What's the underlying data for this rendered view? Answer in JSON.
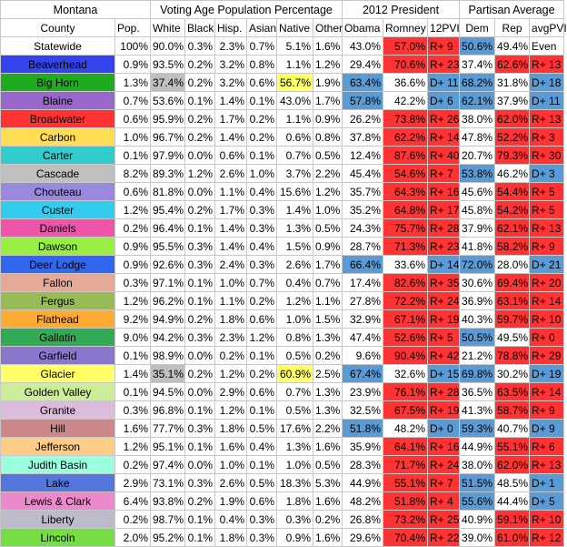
{
  "title_row": {
    "state": "Montana",
    "vap": "Voting Age Population Percentage",
    "president": "2012 President",
    "partisan": "Partisan Average"
  },
  "headers": [
    "County",
    "Pop.",
    "White",
    "Black",
    "Hisp.",
    "Asian",
    "Native",
    "Other",
    "Obama",
    "Romney",
    "12PVI",
    "Dem",
    "Rep",
    "avgPVI"
  ],
  "colors": {
    "red": "#ff3333",
    "blue": "#5b9bd5",
    "gray": "#bfbfbf",
    "yellow": "#ffff66"
  },
  "rows": [
    {
      "county": "Statewide",
      "pop": "100%",
      "white": "90.0%",
      "black": "0.3%",
      "hisp": "2.3%",
      "asian": "0.7%",
      "native": "5.1%",
      "other": "1.6%",
      "obama": "43.0%",
      "romney": "57.0%",
      "pvi": "R+ 9",
      "dem": "50.6%",
      "rep": "49.4%",
      "avg": "Even",
      "countyColor": "#ffffff",
      "obamaWin": false,
      "demWin": true,
      "avgRed": false
    },
    {
      "county": "Beaverhead",
      "pop": "0.9%",
      "white": "93.5%",
      "black": "0.2%",
      "hisp": "3.2%",
      "asian": "0.8%",
      "native": "1.1%",
      "other": "1.2%",
      "obama": "29.4%",
      "romney": "70.6%",
      "pvi": "R+ 23",
      "dem": "37.4%",
      "rep": "62.6%",
      "avg": "R+ 13",
      "countyColor": "#3344ee",
      "obamaWin": false,
      "demWin": false,
      "avgRed": true
    },
    {
      "county": "Big Horn",
      "pop": "1.3%",
      "white": "37.4%",
      "black": "0.2%",
      "hisp": "3.2%",
      "asian": "0.6%",
      "native": "56.7%",
      "other": "1.9%",
      "obama": "63.4%",
      "romney": "36.6%",
      "pvi": "D+ 11",
      "dem": "68.2%",
      "rep": "31.8%",
      "avg": "D+ 18",
      "countyColor": "#1faa1f",
      "obamaWin": true,
      "demWin": true,
      "avgRed": false,
      "whiteGray": true,
      "nativeYellow": true
    },
    {
      "county": "Blaine",
      "pop": "0.7%",
      "white": "53.6%",
      "black": "0.1%",
      "hisp": "1.4%",
      "asian": "0.1%",
      "native": "43.0%",
      "other": "1.7%",
      "obama": "57.8%",
      "romney": "42.2%",
      "pvi": "D+ 6",
      "dem": "62.1%",
      "rep": "37.9%",
      "avg": "D+ 11",
      "countyColor": "#9966cc",
      "obamaWin": true,
      "demWin": true,
      "avgRed": false
    },
    {
      "county": "Broadwater",
      "pop": "0.6%",
      "white": "95.9%",
      "black": "0.2%",
      "hisp": "1.7%",
      "asian": "0.2%",
      "native": "1.1%",
      "other": "0.9%",
      "obama": "26.2%",
      "romney": "73.8%",
      "pvi": "R+ 26",
      "dem": "38.0%",
      "rep": "62.0%",
      "avg": "R+ 13",
      "countyColor": "#ff3333",
      "obamaWin": false,
      "demWin": false,
      "avgRed": true
    },
    {
      "county": "Carbon",
      "pop": "1.0%",
      "white": "96.7%",
      "black": "0.2%",
      "hisp": "1.4%",
      "asian": "0.2%",
      "native": "0.6%",
      "other": "0.8%",
      "obama": "37.8%",
      "romney": "62.2%",
      "pvi": "R+ 14",
      "dem": "47.8%",
      "rep": "52.2%",
      "avg": "R+ 3",
      "countyColor": "#ffdd55",
      "obamaWin": false,
      "demWin": false,
      "avgRed": true
    },
    {
      "county": "Carter",
      "pop": "0.1%",
      "white": "97.9%",
      "black": "0.0%",
      "hisp": "0.6%",
      "asian": "0.1%",
      "native": "0.7%",
      "other": "0.5%",
      "obama": "12.4%",
      "romney": "87.6%",
      "pvi": "R+ 40",
      "dem": "20.7%",
      "rep": "79.3%",
      "avg": "R+ 30",
      "countyColor": "#33cccc",
      "obamaWin": false,
      "demWin": false,
      "avgRed": true
    },
    {
      "county": "Cascade",
      "pop": "8.2%",
      "white": "89.3%",
      "black": "1.2%",
      "hisp": "2.6%",
      "asian": "1.0%",
      "native": "3.7%",
      "other": "2.2%",
      "obama": "45.4%",
      "romney": "54.6%",
      "pvi": "R+ 7",
      "dem": "53.8%",
      "rep": "46.2%",
      "avg": "D+ 3",
      "countyColor": "#bfbfbf",
      "obamaWin": false,
      "demWin": true,
      "avgRed": false
    },
    {
      "county": "Chouteau",
      "pop": "0.6%",
      "white": "81.8%",
      "black": "0.0%",
      "hisp": "1.1%",
      "asian": "0.4%",
      "native": "15.6%",
      "other": "1.2%",
      "obama": "35.7%",
      "romney": "64.3%",
      "pvi": "R+ 16",
      "dem": "45.6%",
      "rep": "54.4%",
      "avg": "R+ 5",
      "countyColor": "#9988dd",
      "obamaWin": false,
      "demWin": false,
      "avgRed": true
    },
    {
      "county": "Custer",
      "pop": "1.2%",
      "white": "95.4%",
      "black": "0.2%",
      "hisp": "1.7%",
      "asian": "0.3%",
      "native": "1.4%",
      "other": "1.0%",
      "obama": "35.2%",
      "romney": "64.8%",
      "pvi": "R+ 17",
      "dem": "45.8%",
      "rep": "54.2%",
      "avg": "R+ 5",
      "countyColor": "#33ccee",
      "obamaWin": false,
      "demWin": false,
      "avgRed": true
    },
    {
      "county": "Daniels",
      "pop": "0.2%",
      "white": "96.4%",
      "black": "0.1%",
      "hisp": "1.4%",
      "asian": "0.3%",
      "native": "1.3%",
      "other": "0.5%",
      "obama": "24.3%",
      "romney": "75.7%",
      "pvi": "R+ 28",
      "dem": "37.9%",
      "rep": "62.1%",
      "avg": "R+ 13",
      "countyColor": "#ee55aa",
      "obamaWin": false,
      "demWin": false,
      "avgRed": true
    },
    {
      "county": "Dawson",
      "pop": "0.9%",
      "white": "95.5%",
      "black": "0.3%",
      "hisp": "1.4%",
      "asian": "0.4%",
      "native": "1.5%",
      "other": "0.9%",
      "obama": "28.7%",
      "romney": "71.3%",
      "pvi": "R+ 23",
      "dem": "41.8%",
      "rep": "58.2%",
      "avg": "R+ 9",
      "countyColor": "#99ee44",
      "obamaWin": false,
      "demWin": false,
      "avgRed": true
    },
    {
      "county": "Deer Lodge",
      "pop": "0.9%",
      "white": "92.6%",
      "black": "0.3%",
      "hisp": "2.4%",
      "asian": "0.3%",
      "native": "2.6%",
      "other": "1.7%",
      "obama": "66.4%",
      "romney": "33.6%",
      "pvi": "D+ 14",
      "dem": "72.0%",
      "rep": "28.0%",
      "avg": "D+ 21",
      "countyColor": "#3366ee",
      "obamaWin": true,
      "demWin": true,
      "avgRed": false
    },
    {
      "county": "Fallon",
      "pop": "0.3%",
      "white": "97.1%",
      "black": "0.1%",
      "hisp": "1.0%",
      "asian": "0.7%",
      "native": "0.4%",
      "other": "0.7%",
      "obama": "17.4%",
      "romney": "82.6%",
      "pvi": "R+ 35",
      "dem": "30.6%",
      "rep": "69.4%",
      "avg": "R+ 20",
      "countyColor": "#e8a898",
      "obamaWin": false,
      "demWin": false,
      "avgRed": true
    },
    {
      "county": "Fergus",
      "pop": "1.2%",
      "white": "96.2%",
      "black": "0.1%",
      "hisp": "1.1%",
      "asian": "0.2%",
      "native": "1.2%",
      "other": "1.1%",
      "obama": "27.8%",
      "romney": "72.2%",
      "pvi": "R+ 24",
      "dem": "36.9%",
      "rep": "63.1%",
      "avg": "R+ 14",
      "countyColor": "#99bb55",
      "obamaWin": false,
      "demWin": false,
      "avgRed": true
    },
    {
      "county": "Flathead",
      "pop": "9.2%",
      "white": "94.9%",
      "black": "0.2%",
      "hisp": "1.8%",
      "asian": "0.6%",
      "native": "1.0%",
      "other": "1.5%",
      "obama": "32.9%",
      "romney": "67.1%",
      "pvi": "R+ 19",
      "dem": "40.3%",
      "rep": "59.7%",
      "avg": "R+ 10",
      "countyColor": "#ffaa33",
      "obamaWin": false,
      "demWin": false,
      "avgRed": true
    },
    {
      "county": "Gallatin",
      "pop": "9.0%",
      "white": "94.2%",
      "black": "0.3%",
      "hisp": "2.3%",
      "asian": "1.2%",
      "native": "0.8%",
      "other": "1.3%",
      "obama": "47.4%",
      "romney": "52.6%",
      "pvi": "R+ 5",
      "dem": "50.5%",
      "rep": "49.5%",
      "avg": "R+ 0",
      "countyColor": "#33aa55",
      "obamaWin": false,
      "demWin": true,
      "avgRed": true
    },
    {
      "county": "Garfield",
      "pop": "0.1%",
      "white": "98.9%",
      "black": "0.0%",
      "hisp": "0.2%",
      "asian": "0.1%",
      "native": "0.5%",
      "other": "0.2%",
      "obama": "9.6%",
      "romney": "90.4%",
      "pvi": "R+ 42",
      "dem": "21.2%",
      "rep": "78.8%",
      "avg": "R+ 29",
      "countyColor": "#8877cc",
      "obamaWin": false,
      "demWin": false,
      "avgRed": true
    },
    {
      "county": "Glacier",
      "pop": "1.4%",
      "white": "35.1%",
      "black": "0.2%",
      "hisp": "1.2%",
      "asian": "0.2%",
      "native": "60.9%",
      "other": "2.5%",
      "obama": "67.4%",
      "romney": "32.6%",
      "pvi": "D+ 15",
      "dem": "69.8%",
      "rep": "30.2%",
      "avg": "D+ 19",
      "countyColor": "#ffff66",
      "obamaWin": true,
      "demWin": true,
      "avgRed": false,
      "whiteGray": true,
      "nativeYellow": true
    },
    {
      "county": "Golden Valley",
      "pop": "0.1%",
      "white": "94.5%",
      "black": "0.0%",
      "hisp": "2.9%",
      "asian": "0.6%",
      "native": "0.7%",
      "other": "1.3%",
      "obama": "23.9%",
      "romney": "76.1%",
      "pvi": "R+ 28",
      "dem": "36.5%",
      "rep": "63.5%",
      "avg": "R+ 14",
      "countyColor": "#ccee99",
      "obamaWin": false,
      "demWin": false,
      "avgRed": true
    },
    {
      "county": "Granite",
      "pop": "0.3%",
      "white": "96.8%",
      "black": "0.1%",
      "hisp": "1.2%",
      "asian": "0.1%",
      "native": "0.5%",
      "other": "1.3%",
      "obama": "32.5%",
      "romney": "67.5%",
      "pvi": "R+ 19",
      "dem": "41.3%",
      "rep": "58.7%",
      "avg": "R+ 9",
      "countyColor": "#ddbbdd",
      "obamaWin": false,
      "demWin": false,
      "avgRed": true
    },
    {
      "county": "Hill",
      "pop": "1.6%",
      "white": "77.7%",
      "black": "0.3%",
      "hisp": "1.8%",
      "asian": "0.5%",
      "native": "17.6%",
      "other": "2.2%",
      "obama": "51.8%",
      "romney": "48.2%",
      "pvi": "D+ 0",
      "dem": "59.3%",
      "rep": "40.7%",
      "avg": "D+ 9",
      "countyColor": "#cc8888",
      "obamaWin": true,
      "demWin": true,
      "avgRed": false
    },
    {
      "county": "Jefferson",
      "pop": "1.2%",
      "white": "95.1%",
      "black": "0.1%",
      "hisp": "1.6%",
      "asian": "0.4%",
      "native": "1.3%",
      "other": "1.6%",
      "obama": "35.9%",
      "romney": "64.1%",
      "pvi": "R+ 16",
      "dem": "44.9%",
      "rep": "55.1%",
      "avg": "R+ 6",
      "countyColor": "#ffcc88",
      "obamaWin": false,
      "demWin": false,
      "avgRed": true
    },
    {
      "county": "Judith Basin",
      "pop": "0.2%",
      "white": "97.4%",
      "black": "0.0%",
      "hisp": "1.0%",
      "asian": "0.1%",
      "native": "1.0%",
      "other": "0.5%",
      "obama": "28.3%",
      "romney": "71.7%",
      "pvi": "R+ 24",
      "dem": "38.0%",
      "rep": "62.0%",
      "avg": "R+ 13",
      "countyColor": "#99ffdd",
      "obamaWin": false,
      "demWin": false,
      "avgRed": true
    },
    {
      "county": "Lake",
      "pop": "2.9%",
      "white": "73.1%",
      "black": "0.3%",
      "hisp": "2.6%",
      "asian": "0.5%",
      "native": "18.3%",
      "other": "5.3%",
      "obama": "44.9%",
      "romney": "55.1%",
      "pvi": "R+ 7",
      "dem": "51.5%",
      "rep": "48.5%",
      "avg": "D+ 1",
      "countyColor": "#5577dd",
      "obamaWin": false,
      "demWin": true,
      "avgRed": false
    },
    {
      "county": "Lewis & Clark",
      "pop": "6.4%",
      "white": "93.8%",
      "black": "0.2%",
      "hisp": "1.9%",
      "asian": "0.6%",
      "native": "1.8%",
      "other": "1.6%",
      "obama": "48.2%",
      "romney": "51.8%",
      "pvi": "R+ 4",
      "dem": "55.6%",
      "rep": "44.4%",
      "avg": "D+ 5",
      "countyColor": "#ee88cc",
      "obamaWin": false,
      "demWin": true,
      "avgRed": false
    },
    {
      "county": "Liberty",
      "pop": "0.2%",
      "white": "98.7%",
      "black": "0.1%",
      "hisp": "0.4%",
      "asian": "0.3%",
      "native": "0.3%",
      "other": "0.2%",
      "obama": "26.8%",
      "romney": "73.2%",
      "pvi": "R+ 25",
      "dem": "40.9%",
      "rep": "59.1%",
      "avg": "R+ 10",
      "countyColor": "#bbbbcc",
      "obamaWin": false,
      "demWin": false,
      "avgRed": true
    },
    {
      "county": "Lincoln",
      "pop": "2.0%",
      "white": "95.2%",
      "black": "0.1%",
      "hisp": "1.8%",
      "asian": "0.3%",
      "native": "0.9%",
      "other": "1.6%",
      "obama": "29.6%",
      "romney": "70.4%",
      "pvi": "R+ 22",
      "dem": "39.0%",
      "rep": "61.0%",
      "avg": "R+ 12",
      "countyColor": "#77dd44",
      "obamaWin": false,
      "demWin": false,
      "avgRed": true
    }
  ]
}
